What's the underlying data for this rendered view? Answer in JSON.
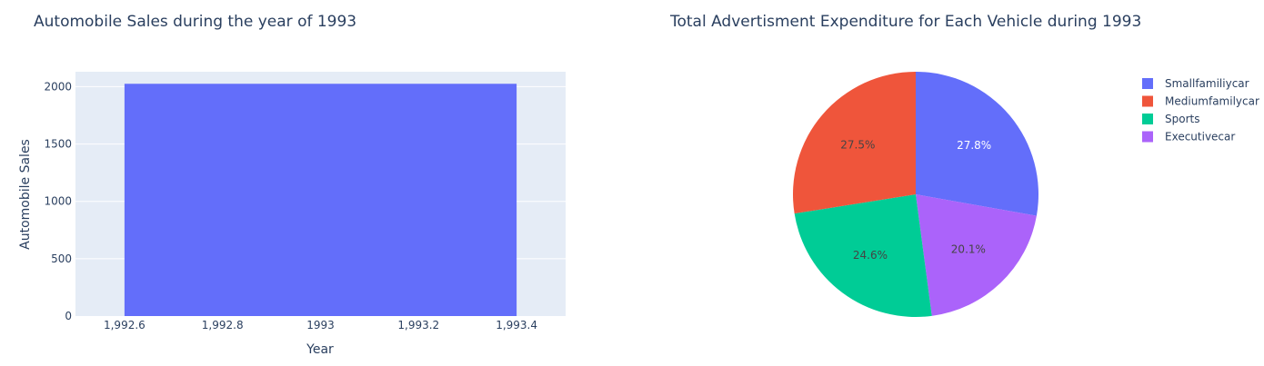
{
  "chart_data": [
    {
      "type": "bar",
      "title": "Automobile Sales during the year of 1993",
      "xlabel": "Year",
      "ylabel": "Automobile Sales",
      "x": [
        1993
      ],
      "values": [
        2025
      ],
      "bar_width": 0.8,
      "xlim": [
        1992.5,
        1993.5
      ],
      "ylim": [
        0,
        2130
      ],
      "xticks": [
        1992.6,
        1992.8,
        1993,
        1993.2,
        1993.4
      ],
      "xtick_labels": [
        "1,992.6",
        "1,992.8",
        "1993",
        "1,993.2",
        "1,993.4"
      ],
      "yticks": [
        0,
        500,
        1000,
        1500,
        2000
      ],
      "ytick_labels": [
        "0",
        "500",
        "1000",
        "1500",
        "2000"
      ],
      "grid": true,
      "colors": {
        "bar": "#636efa",
        "plot_bg": "#e5ecf6",
        "grid": "#ffffff"
      }
    },
    {
      "type": "pie",
      "title": "Total Advertisment Expenditure for Each Vehicle during 1993",
      "legend_position": "top-right",
      "slices": [
        {
          "name": "Smallfamiliycar",
          "percent": 27.8,
          "label": "27.8%",
          "color": "#636efa",
          "label_color": "#ffffff"
        },
        {
          "name": "Executivecar",
          "percent": 20.1,
          "label": "20.1%",
          "color": "#ab63fa",
          "label_color": "#444444"
        },
        {
          "name": "Sports",
          "percent": 24.6,
          "label": "24.6%",
          "color": "#00cc96",
          "label_color": "#444444"
        },
        {
          "name": "Mediumfamilycar",
          "percent": 27.5,
          "label": "27.5%",
          "color": "#ef553b",
          "label_color": "#444444"
        }
      ],
      "legend": [
        {
          "name": "Smallfamiliycar",
          "color": "#636efa"
        },
        {
          "name": "Mediumfamilycar",
          "color": "#ef553b"
        },
        {
          "name": "Sports",
          "color": "#00cc96"
        },
        {
          "name": "Executivecar",
          "color": "#ab63fa"
        }
      ]
    }
  ]
}
